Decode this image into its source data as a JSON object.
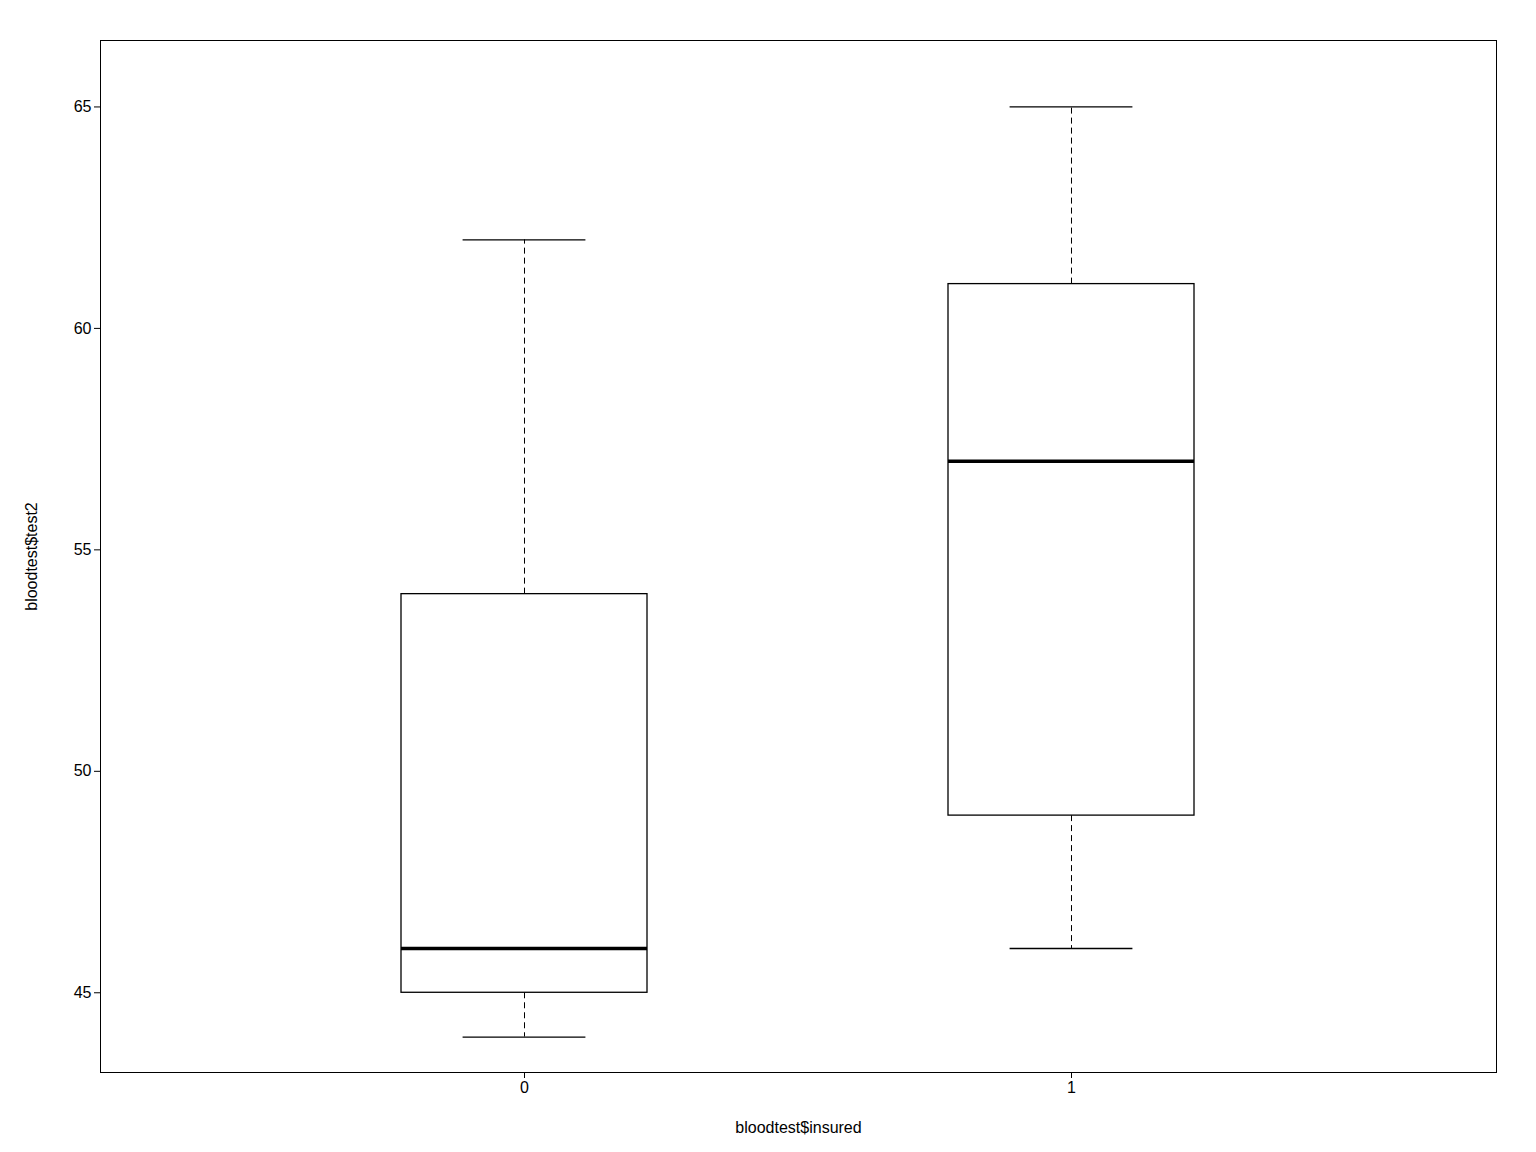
{
  "chart_data": {
    "type": "box",
    "xlabel": "bloodtest$insured",
    "ylabel": "bloodtest$test2",
    "categories": [
      "0",
      "1"
    ],
    "q1": [
      45.0,
      49.0
    ],
    "median": [
      46.0,
      57.0
    ],
    "q3": [
      54.0,
      61.0
    ],
    "whisker_low": [
      44.0,
      46.0
    ],
    "whisker_high": [
      62.0,
      65.0
    ],
    "ylim": [
      43.2,
      66.5
    ],
    "yticks": [
      45,
      50,
      55,
      60,
      65
    ],
    "grid": false
  }
}
